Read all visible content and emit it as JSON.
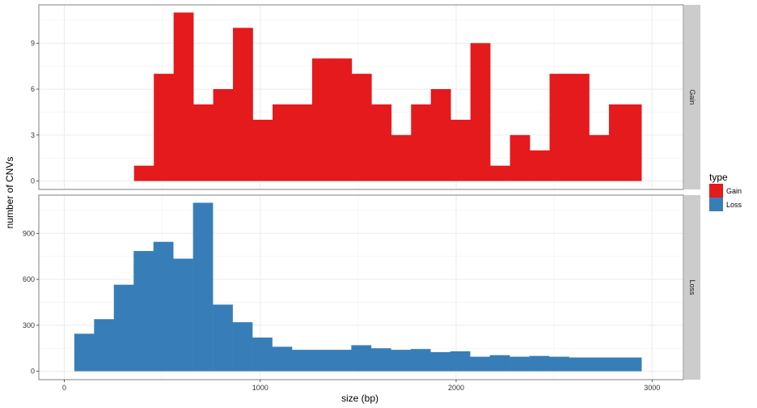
{
  "chart_data": {
    "type": "bar",
    "subtype": "faceted-histogram",
    "xlabel": "size (bp)",
    "ylabel": "number of CNVs",
    "xlim": [
      -130,
      3160
    ],
    "x_ticks": [
      0,
      1000,
      2000,
      3000
    ],
    "bin_width": 101,
    "grid": true,
    "legend": {
      "title": "type",
      "position": "right",
      "entries": [
        {
          "name": "Gain",
          "color": "#e41a1c"
        },
        {
          "name": "Loss",
          "color": "#377eb8"
        }
      ]
    },
    "panels": [
      {
        "strip": "Gain",
        "color": "#e41a1c",
        "ylim": [
          -0.55,
          11.5
        ],
        "y_ticks": [
          0,
          3,
          6,
          9
        ],
        "bin_edges": [
          356,
          457,
          558,
          659,
          760,
          861,
          962,
          1063,
          1164,
          1265,
          1366,
          1467,
          1568,
          1669,
          1770,
          1871,
          1972,
          2073,
          2174,
          2275,
          2376,
          2477,
          2578,
          2679,
          2780,
          2881,
          2946
        ],
        "values": [
          1,
          7,
          11,
          5,
          6,
          10,
          4,
          5,
          5,
          8,
          8,
          7,
          5,
          3,
          5,
          6,
          4,
          9,
          1,
          3,
          2,
          7,
          7,
          3,
          5,
          5
        ]
      },
      {
        "strip": "Loss",
        "color": "#377eb8",
        "ylim": [
          -55,
          1150
        ],
        "y_ticks": [
          0,
          300,
          600,
          900
        ],
        "bin_edges": [
          51,
          152,
          253,
          354,
          455,
          556,
          657,
          758,
          859,
          960,
          1061,
          1162,
          1263,
          1364,
          1465,
          1566,
          1667,
          1768,
          1869,
          1970,
          2071,
          2172,
          2273,
          2374,
          2475,
          2576,
          2677,
          2778,
          2879,
          2946
        ],
        "values": [
          245,
          340,
          565,
          785,
          845,
          735,
          1100,
          435,
          320,
          220,
          160,
          140,
          140,
          140,
          170,
          150,
          140,
          145,
          125,
          130,
          95,
          105,
          95,
          100,
          95,
          90,
          90,
          90,
          90
        ]
      }
    ]
  }
}
